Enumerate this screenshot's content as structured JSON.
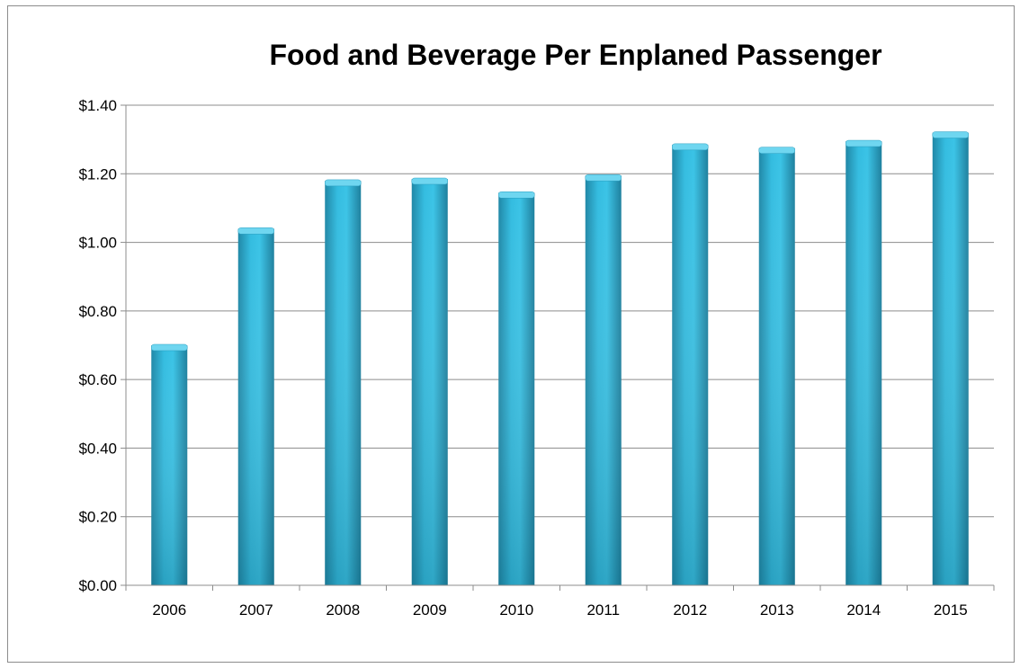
{
  "chart_data": {
    "type": "bar",
    "title": "Food and Beverage Per Enplaned Passenger",
    "xlabel": "",
    "ylabel": "",
    "categories": [
      "2006",
      "2007",
      "2008",
      "2009",
      "2010",
      "2011",
      "2012",
      "2013",
      "2014",
      "2015"
    ],
    "values": [
      0.7,
      1.04,
      1.18,
      1.185,
      1.145,
      1.195,
      1.285,
      1.275,
      1.295,
      1.32
    ],
    "ylim": [
      0,
      1.4
    ],
    "yticks": [
      0,
      0.2,
      0.4,
      0.6,
      0.8,
      1.0,
      1.2,
      1.4
    ],
    "ytick_labels": [
      "$0.00",
      "$0.20",
      "$0.40",
      "$0.60",
      "$0.80",
      "$1.00",
      "$1.20",
      "$1.40"
    ],
    "grid": true,
    "legend": "none",
    "bar_color": "#2fb3d6"
  }
}
